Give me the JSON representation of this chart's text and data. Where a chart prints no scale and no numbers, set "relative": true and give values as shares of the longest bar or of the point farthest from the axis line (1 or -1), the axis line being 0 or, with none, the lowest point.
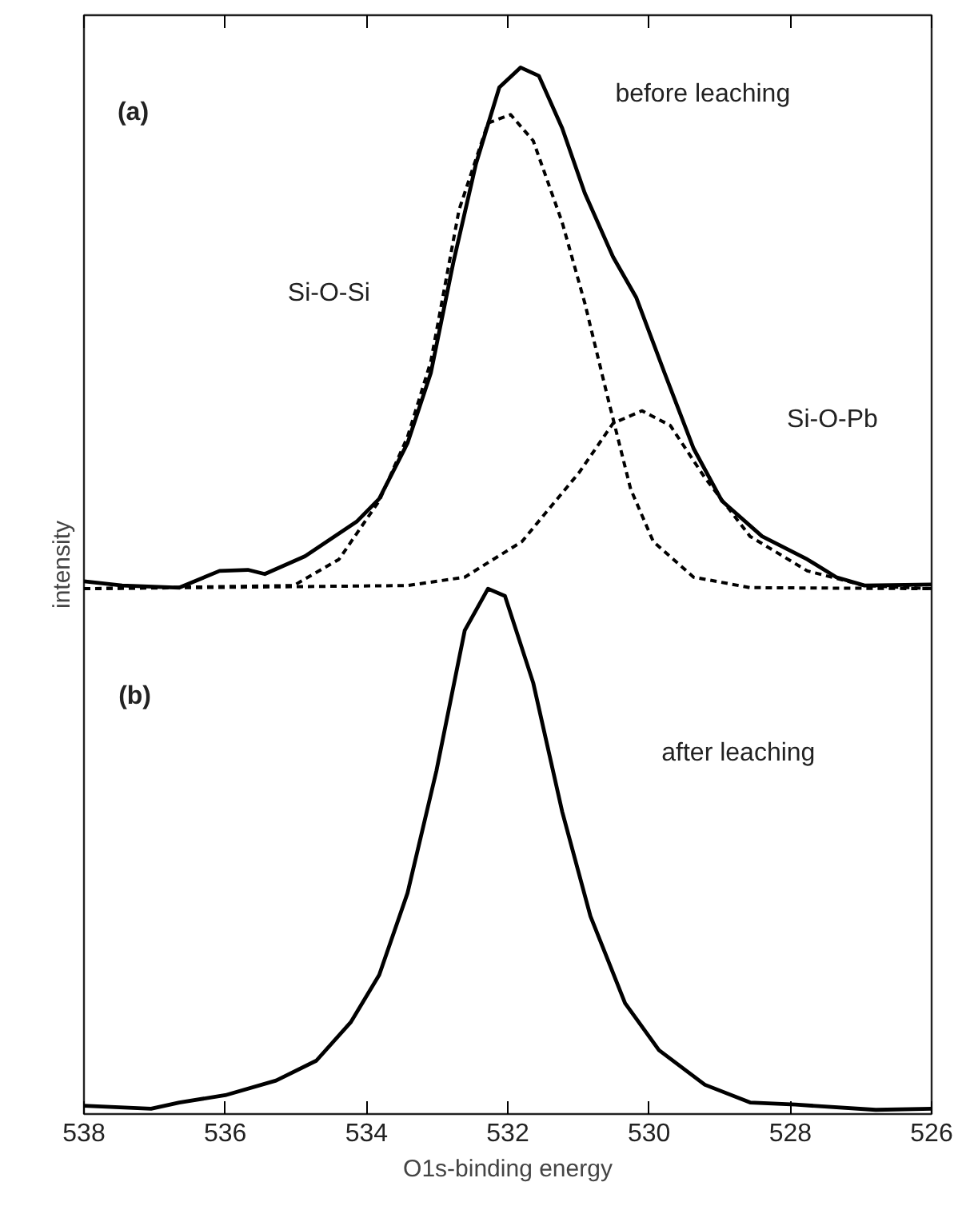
{
  "chart_data": {
    "type": "line",
    "xlabel": "O1s-binding energy",
    "ylabel": "intensity",
    "relative": true,
    "xlim": [
      538,
      526
    ],
    "xticks": [
      538,
      536,
      534,
      532,
      530,
      528,
      526
    ],
    "grid": false,
    "marker": "none",
    "series": [
      {
        "color": "#000000",
        "line_style": "solid",
        "x": [
          538,
          537.46,
          536.65,
          536.08,
          535.68,
          535.44,
          534.87,
          534.14,
          533.82,
          533.42,
          533.09,
          532.77,
          532.45,
          532.12,
          531.82,
          531.56,
          531.23,
          530.91,
          530.51,
          530.18,
          529.78,
          529.37,
          528.97,
          528.4,
          527.76,
          527.35,
          526.95,
          526
        ],
        "values": [
          0.509,
          0.505,
          0.503,
          0.519,
          0.52,
          0.516,
          0.533,
          0.566,
          0.588,
          0.641,
          0.708,
          0.814,
          0.908,
          0.981,
          1.0,
          0.992,
          0.942,
          0.88,
          0.819,
          0.78,
          0.708,
          0.636,
          0.586,
          0.552,
          0.53,
          0.513,
          0.505,
          0.506
        ]
      },
      {
        "color": "#000000",
        "line_style": "dashed",
        "x": [
          538,
          535.03,
          534.39,
          533.82,
          533.42,
          533.09,
          532.69,
          532.28,
          531.96,
          531.64,
          531.23,
          530.91,
          530.59,
          530.26,
          529.94,
          529.37,
          528.57,
          526
        ],
        "values": [
          0.502,
          0.505,
          0.53,
          0.586,
          0.647,
          0.719,
          0.864,
          0.947,
          0.955,
          0.93,
          0.852,
          0.775,
          0.686,
          0.597,
          0.547,
          0.513,
          0.503,
          0.502
        ]
      },
      {
        "color": "#000000",
        "line_style": "dashed",
        "x": [
          538,
          533.42,
          532.61,
          531.8,
          530.99,
          530.51,
          530.1,
          529.7,
          529.21,
          528.57,
          527.76,
          526.95,
          526
        ],
        "values": [
          0.502,
          0.505,
          0.513,
          0.547,
          0.613,
          0.66,
          0.672,
          0.658,
          0.608,
          0.552,
          0.519,
          0.505,
          0.502
        ]
      },
      {
        "color": "#000000",
        "line_style": "solid",
        "x": [
          538,
          537.05,
          536.65,
          536.0,
          535.28,
          534.71,
          534.22,
          533.82,
          533.42,
          533.01,
          532.61,
          532.28,
          532.04,
          531.64,
          531.23,
          530.83,
          530.34,
          529.86,
          529.21,
          528.57,
          527.93,
          526.79,
          526
        ],
        "values": [
          0.008,
          0.005,
          0.011,
          0.018,
          0.032,
          0.051,
          0.088,
          0.133,
          0.211,
          0.328,
          0.462,
          0.502,
          0.495,
          0.412,
          0.289,
          0.189,
          0.106,
          0.061,
          0.028,
          0.011,
          0.009,
          0.004,
          0.005
        ]
      }
    ],
    "annotations": [
      "(a)",
      "before leaching",
      "Si-O-Si",
      "Si-O-Pb",
      "(b)",
      "after leaching"
    ]
  }
}
